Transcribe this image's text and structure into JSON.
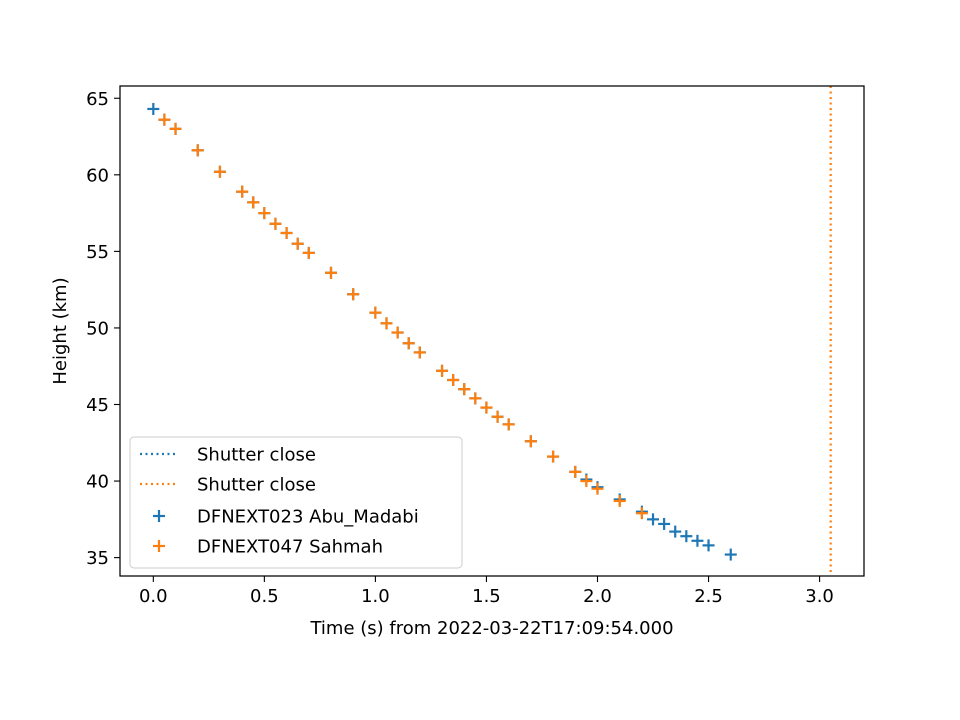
{
  "chart_data": {
    "type": "scatter",
    "title": "",
    "xlabel": "Time (s) from 2022-03-22T17:09:54.000",
    "ylabel": "Height (km)",
    "xlim": [
      -0.15,
      3.2
    ],
    "ylim": [
      33.8,
      65.8
    ],
    "xticks": [
      0.0,
      0.5,
      1.0,
      1.5,
      2.0,
      2.5,
      3.0
    ],
    "xtick_labels": [
      "0.0",
      "0.5",
      "1.0",
      "1.5",
      "2.0",
      "2.5",
      "3.0"
    ],
    "yticks": [
      35,
      40,
      45,
      50,
      55,
      60,
      65
    ],
    "ytick_labels": [
      "35",
      "40",
      "45",
      "50",
      "55",
      "60",
      "65"
    ],
    "grid": false,
    "legend_position": "lower-left",
    "vlines": [
      {
        "label": "Shutter close",
        "x": null,
        "color": "#1f77b4",
        "style": "dotted"
      },
      {
        "label": "Shutter close",
        "x": 3.05,
        "color": "#ff7f0e",
        "style": "dotted"
      }
    ],
    "series": [
      {
        "name": "DFNEXT023 Abu_Madabi",
        "marker": "+",
        "color": "#1f77b4",
        "x": [
          0.0,
          0.05,
          0.1,
          0.2,
          0.3,
          0.4,
          0.45,
          0.5,
          0.55,
          0.6,
          0.65,
          0.7,
          0.8,
          0.9,
          1.0,
          1.05,
          1.1,
          1.15,
          1.2,
          1.3,
          1.35,
          1.4,
          1.45,
          1.5,
          1.55,
          1.6,
          1.7,
          1.8,
          1.9,
          1.95,
          2.0,
          2.1,
          2.2,
          2.25,
          2.3,
          2.35,
          2.4,
          2.45,
          2.5,
          2.6
        ],
        "y": [
          64.3,
          63.6,
          63.0,
          61.6,
          60.2,
          58.9,
          58.2,
          57.5,
          56.8,
          56.2,
          55.5,
          54.9,
          53.6,
          52.2,
          51.0,
          50.3,
          49.7,
          49.0,
          48.4,
          47.2,
          46.6,
          46.0,
          45.4,
          44.8,
          44.2,
          43.7,
          42.6,
          41.6,
          40.6,
          40.1,
          39.6,
          38.8,
          38.0,
          37.5,
          37.2,
          36.7,
          36.4,
          36.1,
          35.8,
          35.2
        ]
      },
      {
        "name": "DFNEXT047 Sahmah",
        "marker": "+",
        "color": "#ff7f0e",
        "x": [
          0.05,
          0.1,
          0.2,
          0.3,
          0.4,
          0.45,
          0.5,
          0.55,
          0.6,
          0.65,
          0.7,
          0.8,
          0.9,
          1.0,
          1.05,
          1.1,
          1.15,
          1.2,
          1.3,
          1.35,
          1.4,
          1.45,
          1.5,
          1.55,
          1.6,
          1.7,
          1.8,
          1.9,
          1.95,
          2.0,
          2.1,
          2.2
        ],
        "y": [
          63.6,
          63.0,
          61.6,
          60.2,
          58.9,
          58.2,
          57.5,
          56.8,
          56.2,
          55.5,
          54.9,
          53.6,
          52.2,
          51.0,
          50.3,
          49.7,
          49.0,
          48.4,
          47.2,
          46.6,
          46.0,
          45.4,
          44.8,
          44.2,
          43.7,
          42.6,
          41.6,
          40.6,
          40.0,
          39.5,
          38.7,
          37.9
        ]
      }
    ]
  }
}
